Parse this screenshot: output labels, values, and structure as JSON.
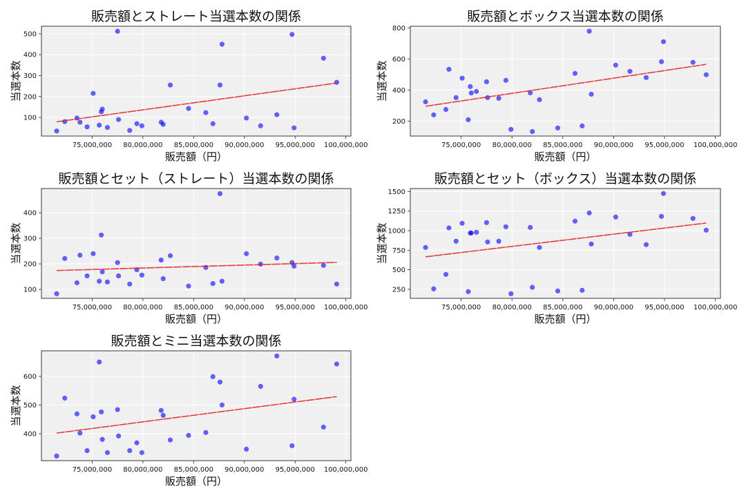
{
  "chart_data": [
    {
      "type": "scatter",
      "title": "販売額とストレート当選本数の関係",
      "xlabel": "販売額（円）",
      "ylabel": "当選本数",
      "xlim": [
        70000000,
        100500000
      ],
      "ylim": [
        11,
        536
      ],
      "xticks": [
        75000000,
        80000000,
        85000000,
        90000000,
        95000000,
        100000000
      ],
      "xtick_labels": [
        "75,000,000",
        "80,000,000",
        "85,000,000",
        "90,000,000",
        "95,000,000",
        "100,000,000"
      ],
      "yticks": [
        100,
        200,
        300,
        400,
        500
      ],
      "ytick_labels": [
        "100",
        "200",
        "300",
        "400",
        "500"
      ],
      "grid": true,
      "trendline": "linear",
      "x": [
        71500000,
        72300000,
        73500000,
        73800000,
        74500000,
        75100000,
        75700000,
        75900000,
        76000000,
        76500000,
        77500000,
        77600000,
        78700000,
        79400000,
        79900000,
        81800000,
        82000000,
        82700000,
        84500000,
        86200000,
        86900000,
        87600000,
        87800000,
        90200000,
        91600000,
        93200000,
        94700000,
        94900000,
        97800000,
        99100000
      ],
      "y": [
        35,
        80,
        97,
        77,
        55,
        215,
        63,
        127,
        140,
        52,
        512,
        90,
        38,
        70,
        60,
        77,
        67,
        255,
        143,
        123,
        70,
        255,
        450,
        97,
        60,
        113,
        497,
        50,
        383,
        268
      ]
    },
    {
      "type": "scatter",
      "title": "販売額とボックス当選本数の関係",
      "xlabel": "販売額（円）",
      "ylabel": "当選本数",
      "xlim": [
        70000000,
        100500000
      ],
      "ylim": [
        104,
        810
      ],
      "xticks": [
        75000000,
        80000000,
        85000000,
        90000000,
        95000000,
        100000000
      ],
      "xtick_labels": [
        "75,000,000",
        "80,000,000",
        "85,000,000",
        "90,000,000",
        "95,000,000",
        "100,000,000"
      ],
      "yticks": [
        200,
        400,
        600,
        800
      ],
      "ytick_labels": [
        "200",
        "400",
        "600",
        "800"
      ],
      "grid": true,
      "trendline": "linear",
      "x": [
        71500000,
        72300000,
        73500000,
        73800000,
        74500000,
        75100000,
        75700000,
        75900000,
        76000000,
        76500000,
        77500000,
        77600000,
        78700000,
        79400000,
        79900000,
        81800000,
        82000000,
        82700000,
        84500000,
        86200000,
        86900000,
        87600000,
        87800000,
        90200000,
        91600000,
        93200000,
        94700000,
        94900000,
        97800000,
        99100000
      ],
      "y": [
        324,
        240,
        275,
        533,
        351,
        476,
        209,
        422,
        381,
        391,
        453,
        351,
        347,
        462,
        147,
        382,
        133,
        338,
        156,
        507,
        169,
        778,
        373,
        560,
        520,
        480,
        582,
        711,
        578,
        498
      ]
    },
    {
      "type": "scatter",
      "title": "販売額とセット（ストレート）当選本数の関係",
      "xlabel": "販売額（円）",
      "ylabel": "当選本数",
      "xlim": [
        70000000,
        100500000
      ],
      "ylim": [
        65,
        495
      ],
      "xticks": [
        75000000,
        80000000,
        85000000,
        90000000,
        95000000,
        100000000
      ],
      "xtick_labels": [
        "75,000,000",
        "80,000,000",
        "85,000,000",
        "90,000,000",
        "95,000,000",
        "100,000,000"
      ],
      "yticks": [
        100,
        200,
        300,
        400
      ],
      "ytick_labels": [
        "100",
        "200",
        "300",
        "400"
      ],
      "grid": true,
      "trendline": "linear",
      "x": [
        71500000,
        72300000,
        73500000,
        73800000,
        74500000,
        75100000,
        75700000,
        75900000,
        76000000,
        76500000,
        77500000,
        77600000,
        78700000,
        79400000,
        79900000,
        81800000,
        82000000,
        82700000,
        84500000,
        86200000,
        86900000,
        87600000,
        87800000,
        90200000,
        91600000,
        93200000,
        94700000,
        94900000,
        97800000,
        99100000
      ],
      "y": [
        83,
        221,
        126,
        234,
        153,
        240,
        132,
        313,
        169,
        129,
        205,
        153,
        121,
        177,
        156,
        215,
        142,
        232,
        113,
        186,
        123,
        475,
        132,
        240,
        199,
        223,
        205,
        191,
        194,
        121
      ]
    },
    {
      "type": "scatter",
      "title": "販売額とセット（ボックス）当選本数の関係",
      "xlabel": "販売額（円）",
      "ylabel": "当選本数",
      "xlim": [
        70000000,
        100500000
      ],
      "ylim": [
        135,
        1538
      ],
      "xticks": [
        75000000,
        80000000,
        85000000,
        90000000,
        95000000,
        100000000
      ],
      "xtick_labels": [
        "75,000,000",
        "80,000,000",
        "85,000,000",
        "90,000,000",
        "95,000,000",
        "100,000,000"
      ],
      "yticks": [
        250,
        500,
        750,
        1000,
        1250,
        1500
      ],
      "ytick_labels": [
        "250",
        "500",
        "750",
        "1000",
        "1250",
        "1500"
      ],
      "grid": true,
      "trendline": "linear",
      "x": [
        71500000,
        72300000,
        73500000,
        73800000,
        74500000,
        75100000,
        75700000,
        75900000,
        76000000,
        76500000,
        77500000,
        77600000,
        78700000,
        79400000,
        79900000,
        81800000,
        82000000,
        82700000,
        84500000,
        86200000,
        86900000,
        87600000,
        87800000,
        90200000,
        91600000,
        93200000,
        94700000,
        94900000,
        97800000,
        99100000
      ],
      "y": [
        785,
        256,
        441,
        1035,
        865,
        1094,
        221,
        970,
        970,
        979,
        1103,
        856,
        865,
        1050,
        194,
        1041,
        276,
        785,
        229,
        1121,
        238,
        1226,
        829,
        1174,
        953,
        821,
        1182,
        1474,
        1156,
        1006
      ]
    },
    {
      "type": "scatter",
      "title": "販売額とミニ当選本数の関係",
      "xlabel": "販売額（円）",
      "ylabel": "当選本数",
      "xlim": [
        70000000,
        100500000
      ],
      "ylim": [
        306,
        689
      ],
      "xticks": [
        75000000,
        80000000,
        85000000,
        90000000,
        95000000,
        100000000
      ],
      "xtick_labels": [
        "75,000,000",
        "80,000,000",
        "85,000,000",
        "90,000,000",
        "95,000,000",
        "100,000,000"
      ],
      "yticks": [
        400,
        500,
        600
      ],
      "ytick_labels": [
        "400",
        "500",
        "600"
      ],
      "grid": true,
      "trendline": "linear",
      "x": [
        71500000,
        72300000,
        73500000,
        73800000,
        74500000,
        75100000,
        75700000,
        75900000,
        76000000,
        76500000,
        77500000,
        77600000,
        78700000,
        79400000,
        79900000,
        81800000,
        82000000,
        82700000,
        84500000,
        86200000,
        86900000,
        87600000,
        87800000,
        90200000,
        91600000,
        93200000,
        94700000,
        94900000,
        97800000,
        99100000
      ],
      "y": [
        322,
        524,
        469,
        402,
        341,
        459,
        650,
        476,
        380,
        334,
        484,
        392,
        341,
        368,
        334,
        481,
        464,
        378,
        394,
        404,
        599,
        580,
        500,
        346,
        565,
        671,
        358,
        520,
        423,
        643
      ]
    }
  ],
  "colors": {
    "point": "#0000ff",
    "trendline": "#e41a1c",
    "plot_background": "#f0f0f0",
    "grid": "#ffffff"
  }
}
